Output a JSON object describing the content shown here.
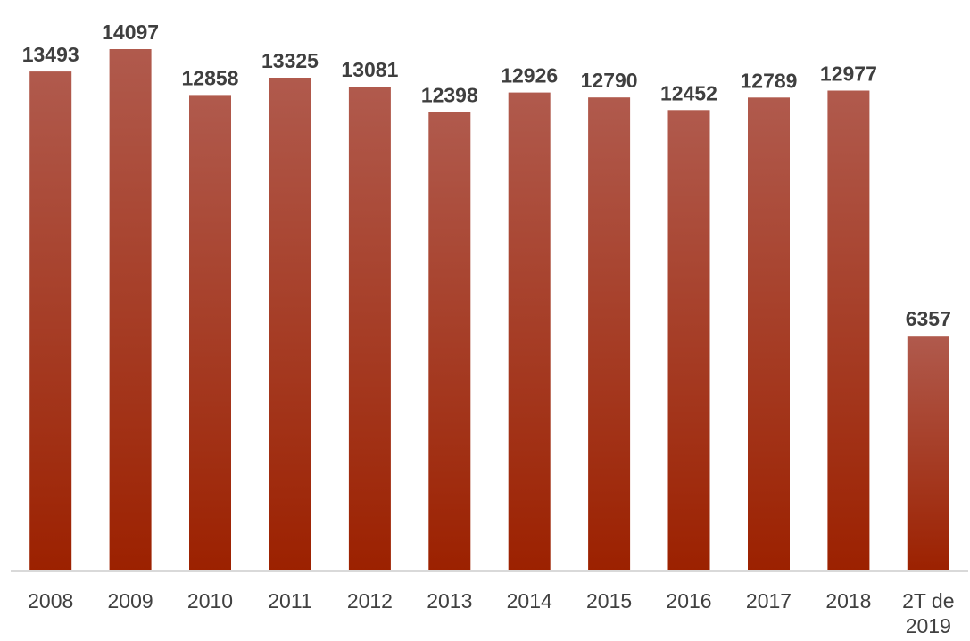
{
  "chart_data": {
    "type": "bar",
    "categories": [
      "2008",
      "2009",
      "2010",
      "2011",
      "2012",
      "2013",
      "2014",
      "2015",
      "2016",
      "2017",
      "2018",
      "2T de 2019"
    ],
    "category_lines": [
      [
        "2008"
      ],
      [
        "2009"
      ],
      [
        "2010"
      ],
      [
        "2011"
      ],
      [
        "2012"
      ],
      [
        "2013"
      ],
      [
        "2014"
      ],
      [
        "2015"
      ],
      [
        "2016"
      ],
      [
        "2017"
      ],
      [
        "2018"
      ],
      [
        "2T de",
        "2019"
      ]
    ],
    "values": [
      13493,
      14097,
      12858,
      13325,
      13081,
      12398,
      12926,
      12790,
      12452,
      12789,
      12977,
      6357
    ],
    "value_labels": [
      "13493",
      "14097",
      "12858",
      "13325",
      "13081",
      "12398",
      "12926",
      "12790",
      "12452",
      "12789",
      "12977",
      "6357"
    ],
    "title": "",
    "xlabel": "",
    "ylabel": "",
    "ylim": [
      0,
      14097
    ],
    "grid": false,
    "legend": "none",
    "data_labels": "above bars, bold",
    "colors": {
      "bar_top": "#b05a4d",
      "bar_bottom": "#9c2100",
      "axis_line": "#d9d9d9",
      "label_text": "#3f3f3f",
      "tick_text": "#404040"
    }
  }
}
